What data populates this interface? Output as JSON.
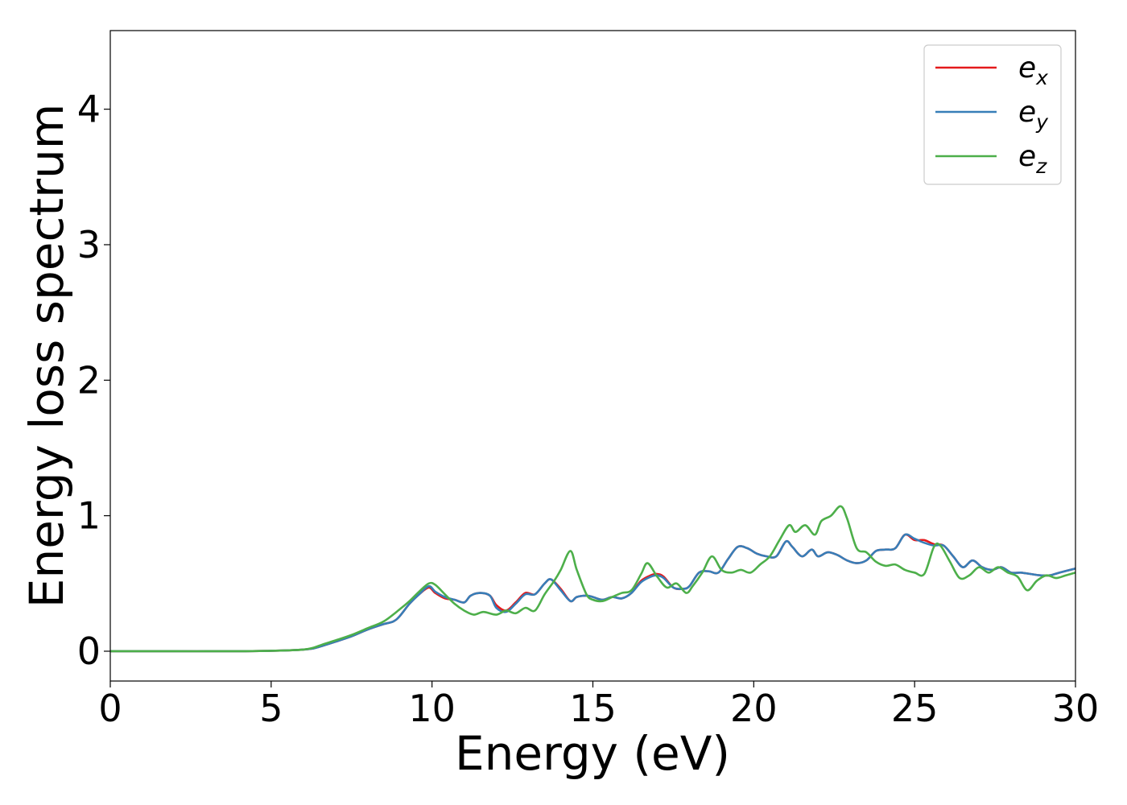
{
  "chart_data": {
    "type": "line",
    "xlabel": "Energy (eV)",
    "ylabel": "Energy loss spectrum",
    "xlim": [
      0,
      30
    ],
    "ylim": [
      -0.22,
      4.58
    ],
    "xticks": [
      0,
      5,
      10,
      15,
      20,
      25,
      30
    ],
    "xtick_labels": [
      "0",
      "5",
      "10",
      "15",
      "20",
      "25",
      "30"
    ],
    "yticks": [
      0,
      1,
      2,
      3,
      4
    ],
    "ytick_labels": [
      "0",
      "1",
      "2",
      "3",
      "4"
    ],
    "grid": false,
    "legend_position": "top-right",
    "series": [
      {
        "name": "e_x",
        "label_main": "e",
        "label_sub": "x",
        "color": "#e41a1c",
        "x": [
          0,
          2,
          4,
          5,
          5.5,
          6,
          6.3,
          6.6,
          7,
          7.5,
          8,
          8.5,
          8.8,
          9,
          9.3,
          9.6,
          9.9,
          10.1,
          10.4,
          10.7,
          11,
          11.2,
          11.5,
          11.8,
          12,
          12.3,
          12.6,
          12.9,
          13.2,
          13.5,
          13.7,
          14,
          14.3,
          14.5,
          14.8,
          15,
          15.3,
          15.6,
          15.9,
          16.2,
          16.5,
          16.8,
          17,
          17.2,
          17.5,
          17.8,
          18,
          18.3,
          18.6,
          18.9,
          19.2,
          19.5,
          19.8,
          20.1,
          20.4,
          20.7,
          21,
          21.2,
          21.5,
          21.8,
          22,
          22.3,
          22.6,
          22.9,
          23.2,
          23.5,
          23.8,
          24.1,
          24.4,
          24.7,
          25,
          25.3,
          25.6,
          25.9,
          26.2,
          26.5,
          26.8,
          27.1,
          27.4,
          27.7,
          28,
          28.3,
          28.6,
          28.9,
          29.2,
          29.5,
          30
        ],
        "values": [
          0,
          0,
          0,
          0.003,
          0.006,
          0.012,
          0.02,
          0.04,
          0.07,
          0.11,
          0.16,
          0.2,
          0.22,
          0.26,
          0.35,
          0.42,
          0.47,
          0.43,
          0.39,
          0.38,
          0.36,
          0.41,
          0.43,
          0.41,
          0.34,
          0.3,
          0.36,
          0.43,
          0.42,
          0.5,
          0.53,
          0.46,
          0.37,
          0.4,
          0.41,
          0.4,
          0.38,
          0.4,
          0.39,
          0.43,
          0.52,
          0.56,
          0.57,
          0.55,
          0.47,
          0.46,
          0.48,
          0.58,
          0.59,
          0.58,
          0.68,
          0.77,
          0.76,
          0.72,
          0.7,
          0.7,
          0.81,
          0.77,
          0.7,
          0.75,
          0.7,
          0.73,
          0.71,
          0.67,
          0.65,
          0.67,
          0.74,
          0.75,
          0.76,
          0.86,
          0.82,
          0.82,
          0.79,
          0.78,
          0.7,
          0.62,
          0.67,
          0.62,
          0.6,
          0.62,
          0.58,
          0.58,
          0.57,
          0.56,
          0.56,
          0.58,
          0.61
        ]
      },
      {
        "name": "e_y",
        "label_main": "e",
        "label_sub": "y",
        "color": "#377eb8",
        "x": [
          0,
          2,
          4,
          5,
          5.5,
          6,
          6.3,
          6.6,
          7,
          7.5,
          8,
          8.5,
          8.8,
          9,
          9.3,
          9.6,
          9.9,
          10.1,
          10.4,
          10.7,
          11,
          11.2,
          11.5,
          11.8,
          12,
          12.3,
          12.6,
          12.9,
          13.2,
          13.5,
          13.7,
          14,
          14.3,
          14.5,
          14.8,
          15,
          15.3,
          15.6,
          15.9,
          16.2,
          16.5,
          16.8,
          17,
          17.2,
          17.5,
          17.8,
          18,
          18.3,
          18.6,
          18.9,
          19.2,
          19.5,
          19.8,
          20.1,
          20.4,
          20.7,
          21,
          21.2,
          21.5,
          21.8,
          22,
          22.3,
          22.6,
          22.9,
          23.2,
          23.5,
          23.8,
          24.1,
          24.4,
          24.7,
          25,
          25.3,
          25.6,
          25.9,
          26.2,
          26.5,
          26.8,
          27.1,
          27.4,
          27.7,
          28,
          28.3,
          28.6,
          28.9,
          29.2,
          29.5,
          30
        ],
        "values": [
          0,
          0,
          0,
          0.003,
          0.006,
          0.012,
          0.02,
          0.04,
          0.07,
          0.11,
          0.16,
          0.2,
          0.22,
          0.26,
          0.35,
          0.42,
          0.48,
          0.44,
          0.4,
          0.38,
          0.36,
          0.41,
          0.43,
          0.41,
          0.32,
          0.29,
          0.35,
          0.42,
          0.42,
          0.5,
          0.53,
          0.45,
          0.37,
          0.4,
          0.41,
          0.4,
          0.38,
          0.4,
          0.39,
          0.43,
          0.51,
          0.55,
          0.56,
          0.54,
          0.47,
          0.46,
          0.48,
          0.58,
          0.59,
          0.58,
          0.68,
          0.77,
          0.76,
          0.72,
          0.7,
          0.7,
          0.81,
          0.77,
          0.7,
          0.75,
          0.7,
          0.73,
          0.71,
          0.67,
          0.65,
          0.67,
          0.74,
          0.75,
          0.76,
          0.86,
          0.83,
          0.8,
          0.78,
          0.78,
          0.7,
          0.62,
          0.67,
          0.62,
          0.6,
          0.62,
          0.58,
          0.58,
          0.57,
          0.56,
          0.56,
          0.58,
          0.61
        ]
      },
      {
        "name": "e_z",
        "label_main": "e",
        "label_sub": "z",
        "color": "#4daf4a",
        "x": [
          0,
          2,
          4,
          5,
          5.5,
          6,
          6.3,
          6.6,
          7,
          7.5,
          8,
          8.5,
          9,
          9.3,
          9.6,
          9.9,
          10.1,
          10.4,
          10.7,
          11,
          11.3,
          11.6,
          12,
          12.3,
          12.6,
          12.9,
          13.2,
          13.5,
          13.8,
          14,
          14.3,
          14.5,
          14.8,
          15,
          15.3,
          15.6,
          15.9,
          16.2,
          16.5,
          16.7,
          17,
          17.3,
          17.6,
          17.9,
          18.1,
          18.4,
          18.7,
          19,
          19.3,
          19.6,
          19.9,
          20.2,
          20.5,
          20.8,
          21.1,
          21.3,
          21.6,
          21.9,
          22.1,
          22.4,
          22.7,
          22.9,
          23.2,
          23.5,
          23.8,
          24.1,
          24.4,
          24.7,
          25,
          25.3,
          25.6,
          25.8,
          26.1,
          26.4,
          26.7,
          27,
          27.3,
          27.6,
          27.9,
          28.2,
          28.5,
          28.8,
          29.1,
          29.4,
          29.7,
          30
        ],
        "values": [
          0,
          0,
          0,
          0.003,
          0.006,
          0.012,
          0.025,
          0.05,
          0.08,
          0.12,
          0.17,
          0.22,
          0.31,
          0.37,
          0.44,
          0.5,
          0.49,
          0.42,
          0.35,
          0.3,
          0.27,
          0.29,
          0.27,
          0.3,
          0.28,
          0.32,
          0.3,
          0.42,
          0.52,
          0.6,
          0.74,
          0.6,
          0.42,
          0.38,
          0.37,
          0.4,
          0.43,
          0.45,
          0.57,
          0.65,
          0.55,
          0.47,
          0.5,
          0.43,
          0.48,
          0.58,
          0.7,
          0.6,
          0.58,
          0.6,
          0.58,
          0.64,
          0.7,
          0.82,
          0.93,
          0.88,
          0.93,
          0.86,
          0.96,
          1.0,
          1.07,
          0.98,
          0.76,
          0.73,
          0.66,
          0.63,
          0.64,
          0.6,
          0.58,
          0.57,
          0.77,
          0.78,
          0.66,
          0.54,
          0.56,
          0.62,
          0.58,
          0.62,
          0.58,
          0.55,
          0.45,
          0.52,
          0.56,
          0.54,
          0.56,
          0.58
        ]
      }
    ]
  }
}
